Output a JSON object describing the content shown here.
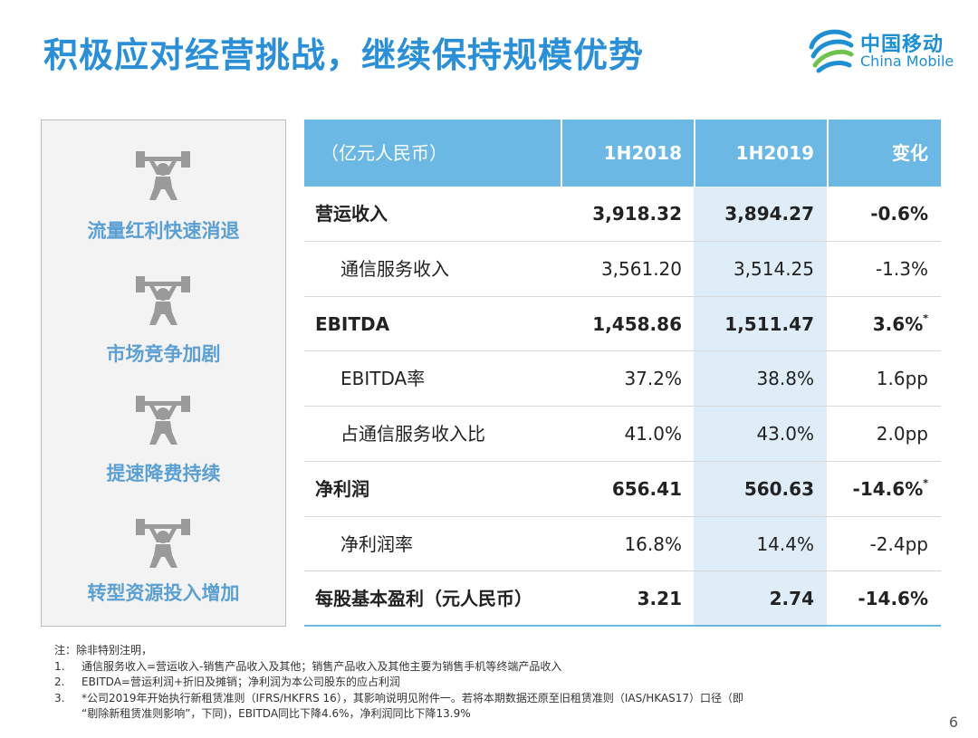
{
  "title": "积极应对经营挑战，继续保持规模优势",
  "logo": {
    "cn": "中国移动",
    "en": "China Mobile"
  },
  "challenges": [
    {
      "label": "流量红利快速消退",
      "icon": "weightlifter-icon"
    },
    {
      "label": "市场竞争加剧",
      "icon": "weightlifter-icon"
    },
    {
      "label": "提速降费持续",
      "icon": "weightlifter-icon"
    },
    {
      "label": "转型资源投入增加",
      "icon": "weightlifter-icon"
    }
  ],
  "table": {
    "headers": [
      "（亿元人民币）",
      "1H2018",
      "1H2019",
      "变化"
    ],
    "rows": [
      {
        "name": "营运收入",
        "v18": "3,918.32",
        "v19": "3,894.27",
        "chg": "-0.6%",
        "mark": ""
      },
      {
        "name": "通信服务收入",
        "v18": "3,561.20",
        "v19": "3,514.25",
        "chg": "-1.3%",
        "mark": ""
      },
      {
        "name": "EBITDA",
        "v18": "1,458.86",
        "v19": "1,511.47",
        "chg": "3.6%",
        "mark": "*"
      },
      {
        "name": "EBITDA率",
        "v18": "37.2%",
        "v19": "38.8%",
        "chg": "1.6pp",
        "mark": ""
      },
      {
        "name": "占通信服务收入比",
        "v18": "41.0%",
        "v19": "43.0%",
        "chg": "2.0pp",
        "mark": ""
      },
      {
        "name": "净利润",
        "v18": "656.41",
        "v19": "560.63",
        "chg": "-14.6%",
        "mark": "*"
      },
      {
        "name": "净利润率",
        "v18": "16.8%",
        "v19": "14.4%",
        "chg": "-2.4pp",
        "mark": ""
      },
      {
        "name": "每股基本盈利（元人民币）",
        "v18": "3.21",
        "v19": "2.74",
        "chg": "-14.6%",
        "mark": ""
      }
    ]
  },
  "notes": {
    "intro": "注：除非特别注明，",
    "items": [
      {
        "num": "1.",
        "text": "通信服务收入=营运收入-销售产品收入及其他；销售产品收入及其他主要为销售手机等终端产品收入"
      },
      {
        "num": "2.",
        "text": "EBITDA=营运利润+折旧及摊销；净利润为本公司股东的应占利润"
      },
      {
        "num": "3.",
        "text": "*公司2019年开始执行新租赁准则（IFRS/HKFRS 16），其影响说明见附件一。若将本期数据还原至旧租赁准则（IAS/HKAS17）口径（即"
      }
    ],
    "cont": "“剔除新租赁准则影响”，下同)，EBITDA同比下降4.6%，净利润同比下降13.9%"
  },
  "page_number": "6",
  "colors": {
    "title": "#2a8fd6",
    "header_bg": "#6cb8e4",
    "highlight_col": "#dfedf8",
    "challenge_text": "#5b9fd3",
    "icon_gray": "#9a9a9a"
  }
}
